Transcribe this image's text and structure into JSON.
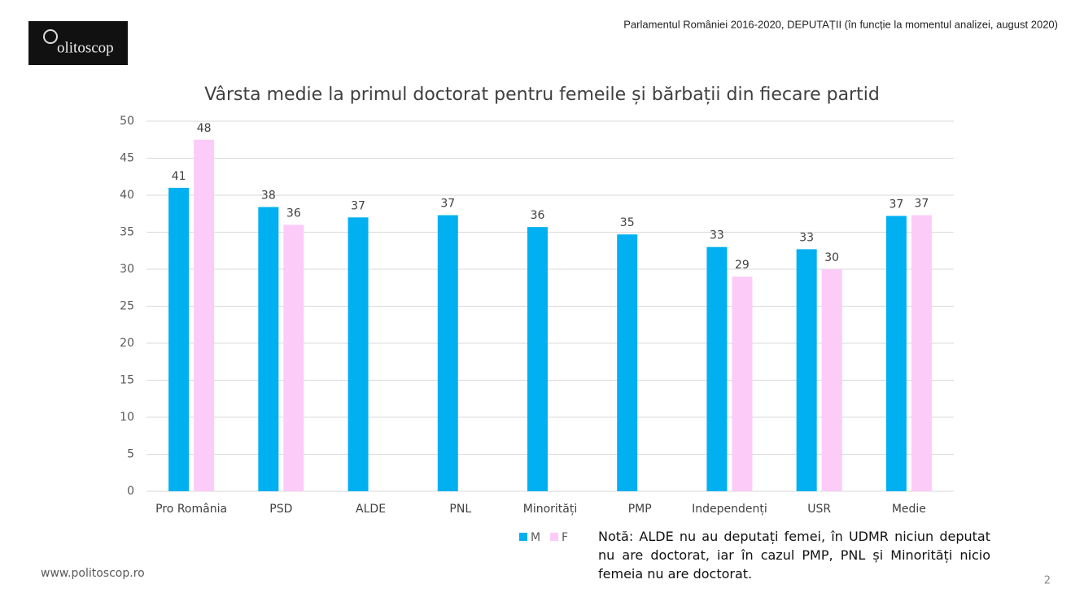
{
  "header": {
    "logo": "olitoscop",
    "source": "Parlamentul României 2016-2020, DEPUTAȚII (în funcție la momentul analizei, august 2020)"
  },
  "chart_data": {
    "type": "bar",
    "title": "Vârsta medie la primul doctorat pentru femeile și bărbații din fiecare partid",
    "categories": [
      "Pro România",
      "PSD",
      "ALDE",
      "PNL",
      "Minorități",
      "PMP",
      "Independenți",
      "USR",
      "Medie"
    ],
    "series": [
      {
        "name": "M",
        "color": "#00b0f0",
        "values": [
          41,
          38.4,
          37,
          37.3,
          35.7,
          34.7,
          33,
          32.7,
          37.2
        ],
        "value_labels": [
          "41",
          "38",
          "37",
          "37",
          "36",
          "35",
          "33",
          "33",
          "37"
        ]
      },
      {
        "name": "F",
        "color": "#fccbf8",
        "values": [
          47.5,
          36,
          null,
          null,
          null,
          null,
          29,
          30,
          37.3
        ],
        "value_labels": [
          "48",
          "36",
          null,
          null,
          null,
          null,
          "29",
          "30",
          "37"
        ]
      }
    ],
    "ylim": [
      0,
      50
    ],
    "yticks": [
      0,
      5,
      10,
      15,
      20,
      25,
      30,
      35,
      40,
      45,
      50
    ],
    "grid": true,
    "legend": "bottom"
  },
  "note": "Notă: ALDE nu au deputați femei, în UDMR niciun deputat nu are doctorat, iar în cazul PMP, PNL și Minorități nicio femeia nu are doctorat.",
  "footer": {
    "website": "www.politoscop.ro",
    "page": "2"
  }
}
